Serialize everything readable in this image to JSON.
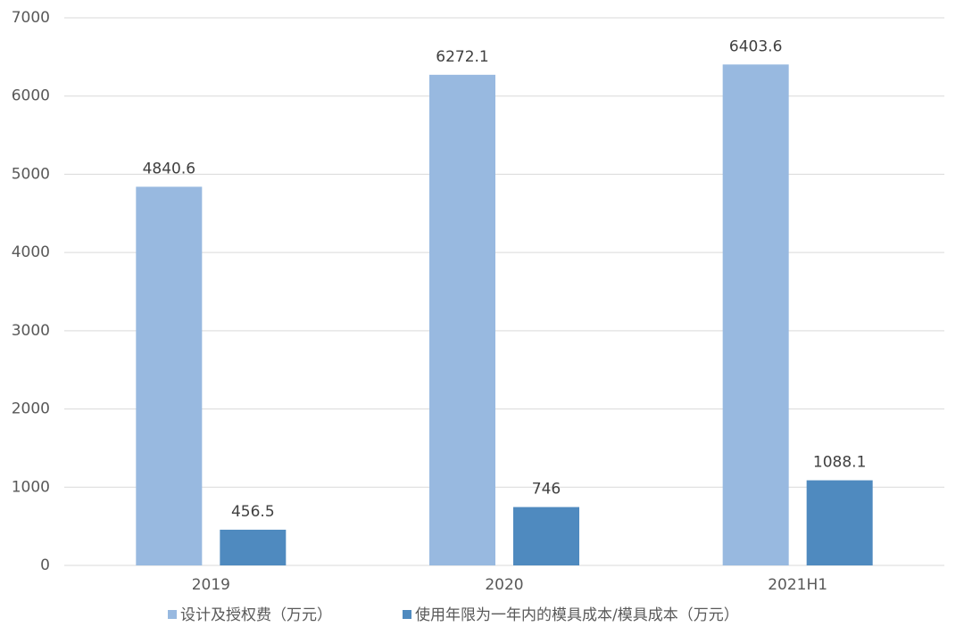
{
  "chart_data": {
    "type": "bar",
    "categories": [
      "2019",
      "2020",
      "2021H1"
    ],
    "series": [
      {
        "name": "设计及授权费（万元）",
        "color": "#98b9e0",
        "values": [
          4840.6,
          6272.1,
          6403.6
        ]
      },
      {
        "name": "使用年限为一年内的模具成本/模具成本（万元）",
        "color": "#4f8abf",
        "values": [
          456.5,
          746,
          1088.1
        ]
      }
    ],
    "ylim": [
      0,
      7000
    ],
    "yticks": [
      0,
      1000,
      2000,
      3000,
      4000,
      5000,
      6000,
      7000
    ],
    "grid": true,
    "legend": "bottom"
  }
}
